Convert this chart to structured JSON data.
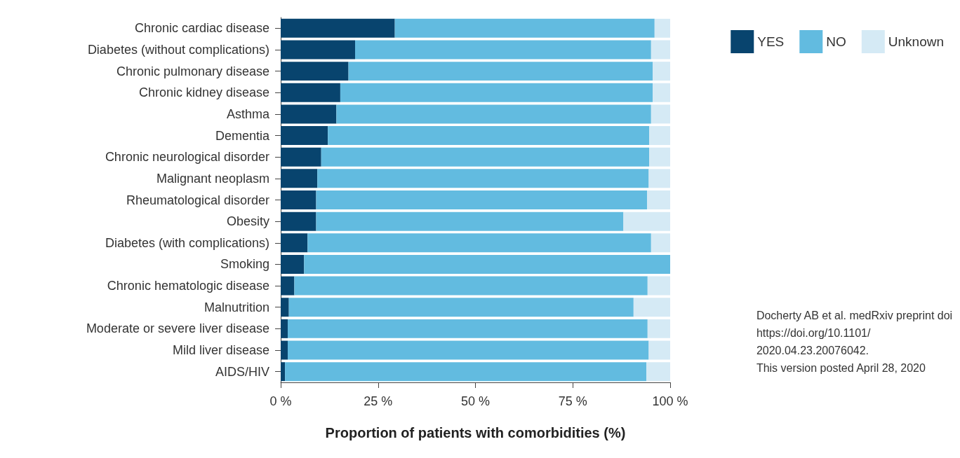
{
  "chart_data": {
    "type": "bar",
    "orientation": "horizontal",
    "stacked": true,
    "xlabel": "Proportion of patients with comorbidities (%)",
    "categories": [
      "Chronic cardiac disease",
      "Diabetes (without complications)",
      "Chronic pulmonary disease",
      "Chronic kidney disease",
      "Asthma",
      "Dementia",
      "Chronic neurological disorder",
      "Malignant neoplasm",
      "Rheumatological disorder",
      "Obesity",
      "Diabetes (with complications)",
      "Smoking",
      "Chronic hematologic disease",
      "Malnutrition",
      "Moderate or severe liver disease",
      "Mild liver disease",
      "AIDS/HIV"
    ],
    "series": [
      {
        "name": "YES",
        "color": "#08446e",
        "values": [
          29.3,
          19.1,
          17.4,
          15.3,
          14.3,
          12.1,
          10.4,
          9.4,
          9.1,
          9.1,
          6.9,
          6.0,
          3.5,
          2.1,
          1.8,
          1.8,
          1.1
        ]
      },
      {
        "name": "NO",
        "color": "#62bbe0",
        "values": [
          66.7,
          76.0,
          78.1,
          80.2,
          80.8,
          82.5,
          84.2,
          85.1,
          85.0,
          78.9,
          88.2,
          94.0,
          90.7,
          88.5,
          92.4,
          92.7,
          92.8
        ]
      },
      {
        "name": "Unknown",
        "color": "#d5eaf5",
        "values": [
          4.0,
          4.9,
          4.5,
          4.5,
          4.9,
          5.4,
          5.4,
          5.5,
          5.9,
          12.0,
          4.9,
          0,
          5.8,
          9.4,
          5.8,
          5.5,
          6.1
        ]
      }
    ],
    "xlim": [
      0,
      100
    ],
    "xticks": [
      {
        "value": 0,
        "label": "0 %"
      },
      {
        "value": 25,
        "label": "25 %"
      },
      {
        "value": 50,
        "label": "50 %"
      },
      {
        "value": 75,
        "label": "75 %"
      },
      {
        "value": 100,
        "label": "100 %"
      }
    ],
    "grid": false,
    "legend": "top right",
    "annotations": [
      "Docherty AB et al. medRxiv preprint doi\nhttps://doi.org/10.1101/\n2020.04.23.20076042.\nThis version posted April 28, 2020"
    ]
  }
}
